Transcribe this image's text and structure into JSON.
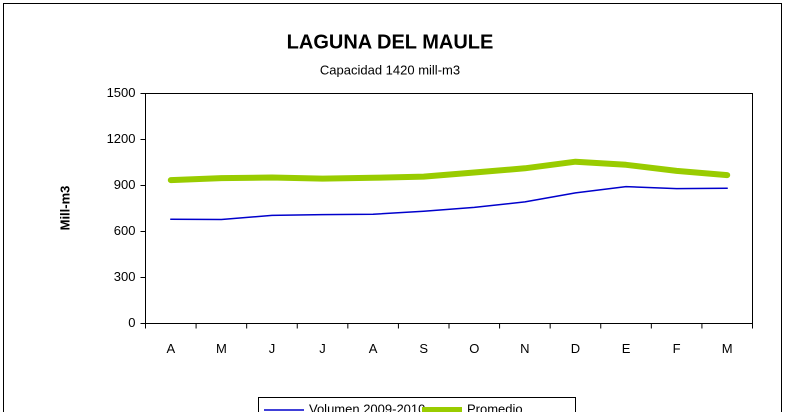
{
  "chart_data": {
    "type": "line",
    "title": "LAGUNA DEL MAULE",
    "subtitle": "Capacidad  1420 mill-m3",
    "y_label": "Mill-m3",
    "categories": [
      "A",
      "M",
      "J",
      "J",
      "A",
      "S",
      "O",
      "N",
      "D",
      "E",
      "F",
      "M"
    ],
    "series": [
      {
        "name": "Volumen  2009-2010",
        "color": "#0000cc",
        "values": [
          680,
          678,
          705,
          710,
          713,
          732,
          757,
          793,
          852,
          893,
          880,
          882
        ]
      },
      {
        "name": "Promedio",
        "color": "#99cc00",
        "values": [
          935,
          948,
          952,
          945,
          950,
          958,
          985,
          1012,
          1055,
          1035,
          995,
          968
        ]
      }
    ],
    "ylim": [
      0,
      1500
    ],
    "yticks": [
      0,
      300,
      600,
      900,
      1200,
      1500
    ],
    "grid": false,
    "legend": "bottom"
  }
}
